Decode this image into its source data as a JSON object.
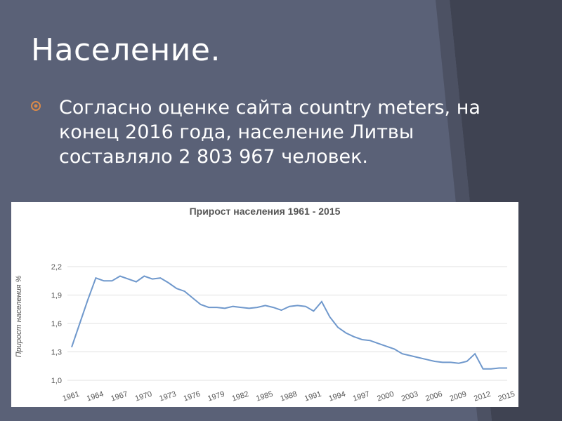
{
  "slide": {
    "title": "Население.",
    "bullet": "Согласно оценке сайта country meters, на конец 2016 года, население Литвы составляло 2 803 967 человек."
  },
  "colors": {
    "background": "#5a6177",
    "bullet": "#d98a4a",
    "line": "#6f98cc",
    "grid": "#e0e0e0"
  },
  "chart_data": {
    "type": "line",
    "title": "Прирост населения 1961 - 2015",
    "xlabel": "",
    "ylabel": "Прирост населения %",
    "ylim": [
      1.0,
      2.2
    ],
    "yticks": [
      "1,0",
      "1,3",
      "1,6",
      "1,9",
      "2,2"
    ],
    "xticks": [
      "1961",
      "1964",
      "1967",
      "1970",
      "1973",
      "1976",
      "1979",
      "1982",
      "1985",
      "1988",
      "1991",
      "1994",
      "1997",
      "2000",
      "2003",
      "2006",
      "2009",
      "2012",
      "2015"
    ],
    "grid": true,
    "x": [
      1961,
      1962,
      1963,
      1964,
      1965,
      1966,
      1967,
      1968,
      1969,
      1970,
      1971,
      1972,
      1973,
      1974,
      1975,
      1976,
      1977,
      1978,
      1979,
      1980,
      1981,
      1982,
      1983,
      1984,
      1985,
      1986,
      1987,
      1988,
      1989,
      1990,
      1991,
      1992,
      1993,
      1994,
      1995,
      1996,
      1997,
      1998,
      1999,
      2000,
      2001,
      2002,
      2003,
      2004,
      2005,
      2006,
      2007,
      2008,
      2009,
      2010,
      2011,
      2012,
      2013,
      2014,
      2015
    ],
    "y": [
      1.35,
      1.6,
      1.85,
      2.08,
      2.05,
      2.05,
      2.1,
      2.07,
      2.04,
      2.1,
      2.07,
      2.08,
      2.03,
      1.97,
      1.94,
      1.87,
      1.8,
      1.77,
      1.77,
      1.76,
      1.78,
      1.77,
      1.76,
      1.77,
      1.79,
      1.77,
      1.74,
      1.78,
      1.79,
      1.78,
      1.73,
      1.83,
      1.67,
      1.56,
      1.5,
      1.46,
      1.43,
      1.42,
      1.39,
      1.36,
      1.33,
      1.28,
      1.26,
      1.24,
      1.22,
      1.2,
      1.19,
      1.19,
      1.18,
      1.2,
      1.28,
      1.12,
      1.12,
      1.13,
      1.13
    ]
  }
}
